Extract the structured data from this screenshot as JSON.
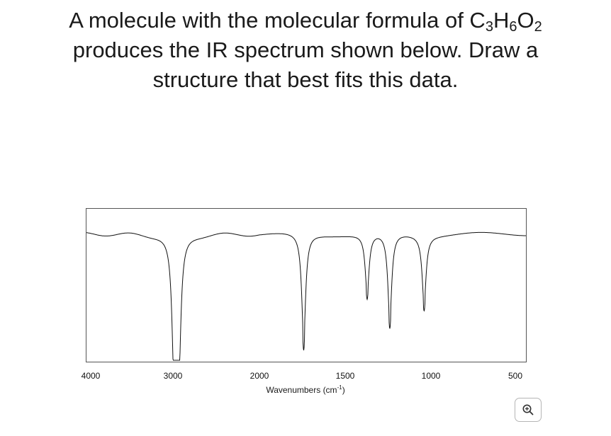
{
  "question": {
    "line1_a": "A molecule with the molecular formula of C",
    "sub1": "3",
    "line1_b": "H",
    "sub2": "6",
    "line1_c": "O",
    "sub3": "2",
    "line2": "produces the IR spectrum shown below. Draw a",
    "line3": "structure that best fits this data."
  },
  "chart_data": {
    "type": "line",
    "title": "",
    "xlabel": "Wavenumbers (cm",
    "xlabel_sup": "-1",
    "xlabel_close": ")",
    "x_ticks": [
      "4000",
      "3000",
      "2000",
      "1500",
      "1000",
      "500"
    ],
    "x_tick_values": [
      4000,
      3000,
      2000,
      1500,
      1000,
      500
    ],
    "x_axis_reversed": true,
    "ylabel": "",
    "y_unit": "relative transmittance (0 = bottom, 100 = top)",
    "ylim": [
      0,
      100
    ],
    "baseline": 88,
    "series": [
      {
        "peaks": [
          {
            "x": 2990,
            "y": 20
          },
          {
            "x": 2960,
            "y": 1
          },
          {
            "x": 2930,
            "y": 20
          },
          {
            "x": 1742,
            "y": 7
          },
          {
            "x": 1372,
            "y": 43
          },
          {
            "x": 1240,
            "y": 22
          },
          {
            "x": 1040,
            "y": 36
          }
        ]
      }
    ]
  },
  "zoom_button": {
    "icon": "zoom-in-icon"
  }
}
